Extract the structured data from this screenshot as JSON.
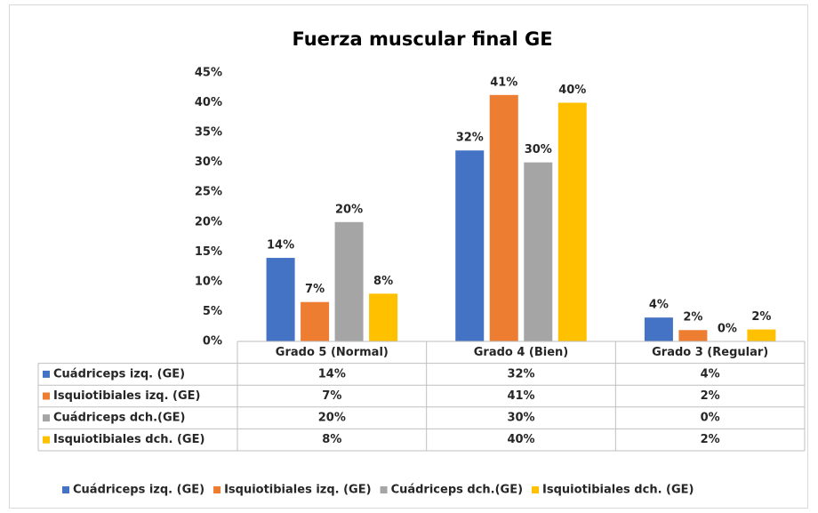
{
  "chart_data": {
    "type": "bar",
    "title": "Fuerza muscular final GE",
    "categories": [
      "Grado 5 (Normal)",
      "Grado 4 (Bien)",
      "Grado 3 (Regular)"
    ],
    "series": [
      {
        "name": "Cuádriceps izq. (GE)",
        "color": "#4472c4",
        "values": [
          14,
          32,
          4
        ],
        "value_labels": [
          "14%",
          "32%",
          "4%"
        ]
      },
      {
        "name": "Isquiotibiales izq. (GE)",
        "color": "#ed7d31",
        "values": [
          6.6,
          41.3,
          1.9
        ],
        "value_labels": [
          "7%",
          "41%",
          "2%"
        ]
      },
      {
        "name": "Cuádriceps dch.(GE)",
        "color": "#a5a5a5",
        "values": [
          20,
          30,
          0
        ],
        "value_labels": [
          "20%",
          "30%",
          "0%"
        ]
      },
      {
        "name": "Isquiotibiales dch. (GE)",
        "color": "#ffc000",
        "values": [
          8,
          40,
          2
        ],
        "value_labels": [
          "8%",
          "40%",
          "2%"
        ]
      }
    ],
    "ylim": [
      0,
      45
    ],
    "yticks": [
      {
        "value": 0,
        "label": "0%"
      },
      {
        "value": 5,
        "label": "5%"
      },
      {
        "value": 10,
        "label": "10%"
      },
      {
        "value": 15,
        "label": "15%"
      },
      {
        "value": 20,
        "label": "20%"
      },
      {
        "value": 25,
        "label": "25%"
      },
      {
        "value": 30,
        "label": "30%"
      },
      {
        "value": 35,
        "label": "35%"
      },
      {
        "value": 40,
        "label": "40%"
      },
      {
        "value": 45,
        "label": "45%"
      }
    ],
    "grid": false,
    "data_table": true,
    "legend": "bottom"
  }
}
